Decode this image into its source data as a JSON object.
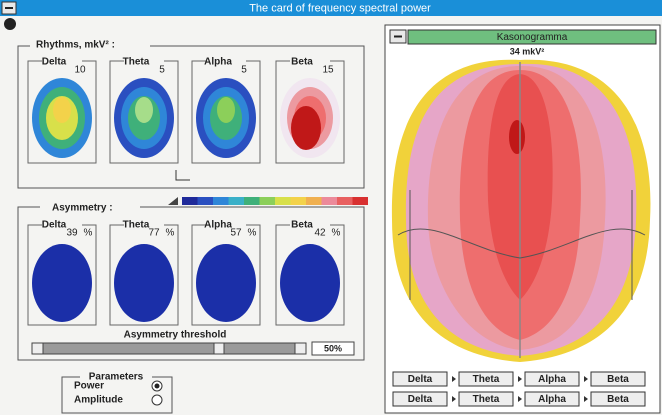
{
  "window": {
    "title": "The card of frequency spectral power"
  },
  "rhythms": {
    "label": "Rhythms, mkV² :",
    "maps": [
      {
        "name": "Delta",
        "value": 10
      },
      {
        "name": "Theta",
        "value": 5
      },
      {
        "name": "Alpha",
        "value": 5
      },
      {
        "name": "Beta",
        "value": 15
      }
    ]
  },
  "asymmetry": {
    "label": "Asymmetry :",
    "unit": "%",
    "maps": [
      {
        "name": "Delta",
        "value": 39
      },
      {
        "name": "Theta",
        "value": 77
      },
      {
        "name": "Alpha",
        "value": 57
      },
      {
        "name": "Beta",
        "value": 42
      }
    ]
  },
  "threshold": {
    "label": "Asymmetry threshold",
    "value": "50%"
  },
  "parameters": {
    "title": "Parameters",
    "options": [
      {
        "label": "Power",
        "selected": true
      },
      {
        "label": "Amplitude",
        "selected": false
      }
    ]
  },
  "kasonogramma": {
    "title": "Kasonogramma",
    "value": "34 mkV²",
    "buttons": [
      [
        "Delta",
        "Theta",
        "Alpha",
        "Beta"
      ],
      [
        "Delta",
        "Theta",
        "Alpha",
        "Beta"
      ]
    ]
  }
}
